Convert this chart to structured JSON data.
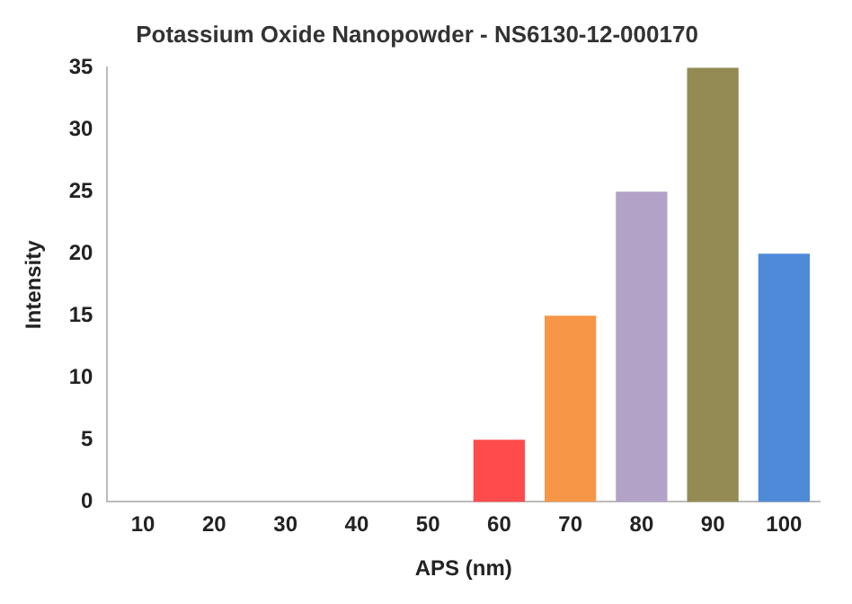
{
  "chart_data": {
    "type": "bar",
    "title": "Potassium Oxide Nanopowder - NS6130-12-000170",
    "xlabel": "APS (nm)",
    "ylabel": "Intensity",
    "categories": [
      "10",
      "20",
      "30",
      "40",
      "50",
      "60",
      "70",
      "80",
      "90",
      "100"
    ],
    "values": [
      0,
      0,
      0,
      0,
      0,
      5,
      15,
      25,
      35,
      20
    ],
    "colors": [
      "#a0522d",
      "#4f6228",
      "#8c6e58",
      "#4a4a2a",
      "#7f7f7f",
      "#ff4b4b",
      "#f79646",
      "#b3a2c7",
      "#948a54",
      "#4f8ad8"
    ],
    "ylim": [
      0,
      35
    ],
    "yticks": [
      0,
      5,
      10,
      15,
      20,
      25,
      30,
      35
    ],
    "grid": false,
    "legend": false
  }
}
